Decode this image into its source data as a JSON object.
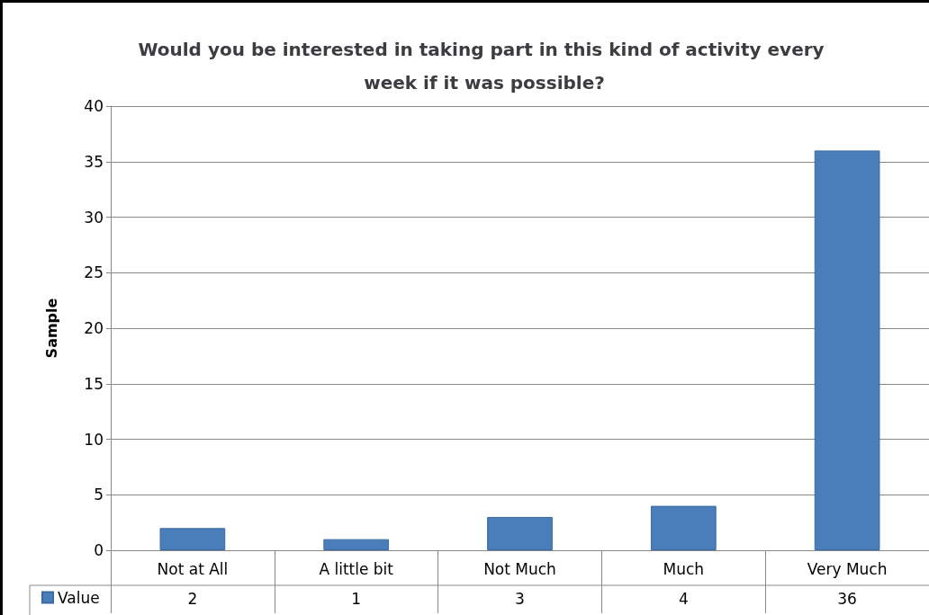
{
  "chart_data": {
    "type": "bar",
    "title": "Would you be interested in taking part in this kind of activity every week if it was possible?",
    "ylabel": "Sample",
    "categories": [
      "Not at All",
      "A little bit",
      "Not Much",
      "Much",
      "Very Much"
    ],
    "series": [
      {
        "name": "Value",
        "color": "#4a7ebb",
        "values": [
          2,
          1,
          3,
          4,
          36
        ]
      }
    ],
    "ylim": [
      0,
      40
    ],
    "yticks": [
      0,
      5,
      10,
      15,
      20,
      25,
      30,
      35,
      40
    ],
    "grid": "y",
    "legend": "bottom left",
    "data_labels": true
  }
}
